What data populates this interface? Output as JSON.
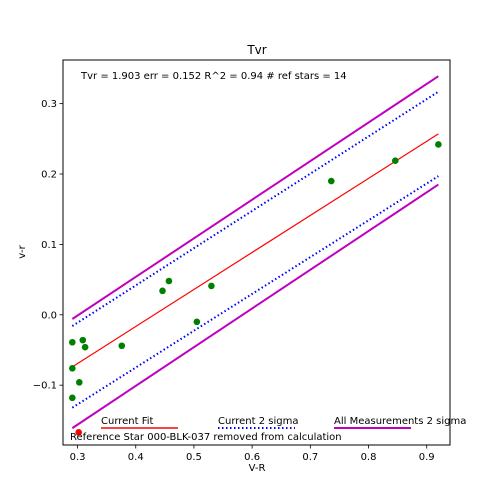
{
  "chart_data": {
    "type": "scatter",
    "title": "Tvr",
    "xlabel": "V-R",
    "ylabel": "v-r",
    "xlim": [
      0.275,
      0.94
    ],
    "ylim": [
      -0.185,
      0.362
    ],
    "xticks": [
      0.3,
      0.4,
      0.5,
      0.6,
      0.7,
      0.8,
      0.9
    ],
    "yticks": [
      -0.1,
      0.0,
      0.1,
      0.2,
      0.3
    ],
    "xtick_labels": [
      "0.3",
      "0.4",
      "0.5",
      "0.6",
      "0.7",
      "0.8",
      "0.9"
    ],
    "ytick_labels": [
      "−0.1",
      "0.0",
      "0.1",
      "0.2",
      "0.3"
    ],
    "grid": false,
    "annotation": "Tvr =  1.903 err = 0.152  R^2 = 0.94  # ref stars =  14",
    "points": [
      {
        "x": 0.291,
        "y": -0.039
      },
      {
        "x": 0.291,
        "y": -0.076
      },
      {
        "x": 0.291,
        "y": -0.118
      },
      {
        "x": 0.303,
        "y": -0.096
      },
      {
        "x": 0.309,
        "y": -0.036
      },
      {
        "x": 0.313,
        "y": -0.046
      },
      {
        "x": 0.376,
        "y": -0.044
      },
      {
        "x": 0.446,
        "y": 0.034
      },
      {
        "x": 0.457,
        "y": 0.048
      },
      {
        "x": 0.505,
        "y": -0.01
      },
      {
        "x": 0.53,
        "y": 0.041
      },
      {
        "x": 0.736,
        "y": 0.19
      },
      {
        "x": 0.846,
        "y": 0.219
      },
      {
        "x": 0.92,
        "y": 0.242
      }
    ],
    "removed_point": {
      "x": 0.302,
      "y": -0.167
    },
    "lines": [
      {
        "name": "Current Fit",
        "color": "#ff0000",
        "style": "solid",
        "x": [
          0.291,
          0.92
        ],
        "y": [
          -0.074,
          0.257
        ]
      },
      {
        "name": "Current 2 sigma",
        "color": "#0000ff",
        "style": "dotted",
        "x": [
          0.291,
          0.92
        ],
        "y": [
          -0.016,
          0.317
        ]
      },
      {
        "name": "Current 2 sigma",
        "color": "#0000ff",
        "style": "dotted",
        "x": [
          0.291,
          0.92
        ],
        "y": [
          -0.132,
          0.197
        ]
      },
      {
        "name": "All Measurements 2 sigma",
        "color": "#bf00bf",
        "style": "solid",
        "x": [
          0.291,
          0.92
        ],
        "y": [
          -0.006,
          0.339
        ]
      },
      {
        "name": "All Measurements 2 sigma",
        "color": "#bf00bf",
        "style": "solid",
        "x": [
          0.291,
          0.92
        ],
        "y": [
          -0.161,
          0.185
        ]
      }
    ],
    "legend": {
      "placement": "bottom",
      "items": [
        {
          "label": "Current Fit",
          "color": "#ff0000",
          "style": "solid"
        },
        {
          "label": "Current 2 sigma",
          "color": "#0000ff",
          "style": "dotted"
        },
        {
          "label": "All Measurements 2 sigma",
          "color": "#bf00bf",
          "style": "solid"
        }
      ],
      "note": "Reference Star 000-BLK-037 removed from calculation",
      "note_color": "#ff0000"
    },
    "point_color": "#008000"
  }
}
